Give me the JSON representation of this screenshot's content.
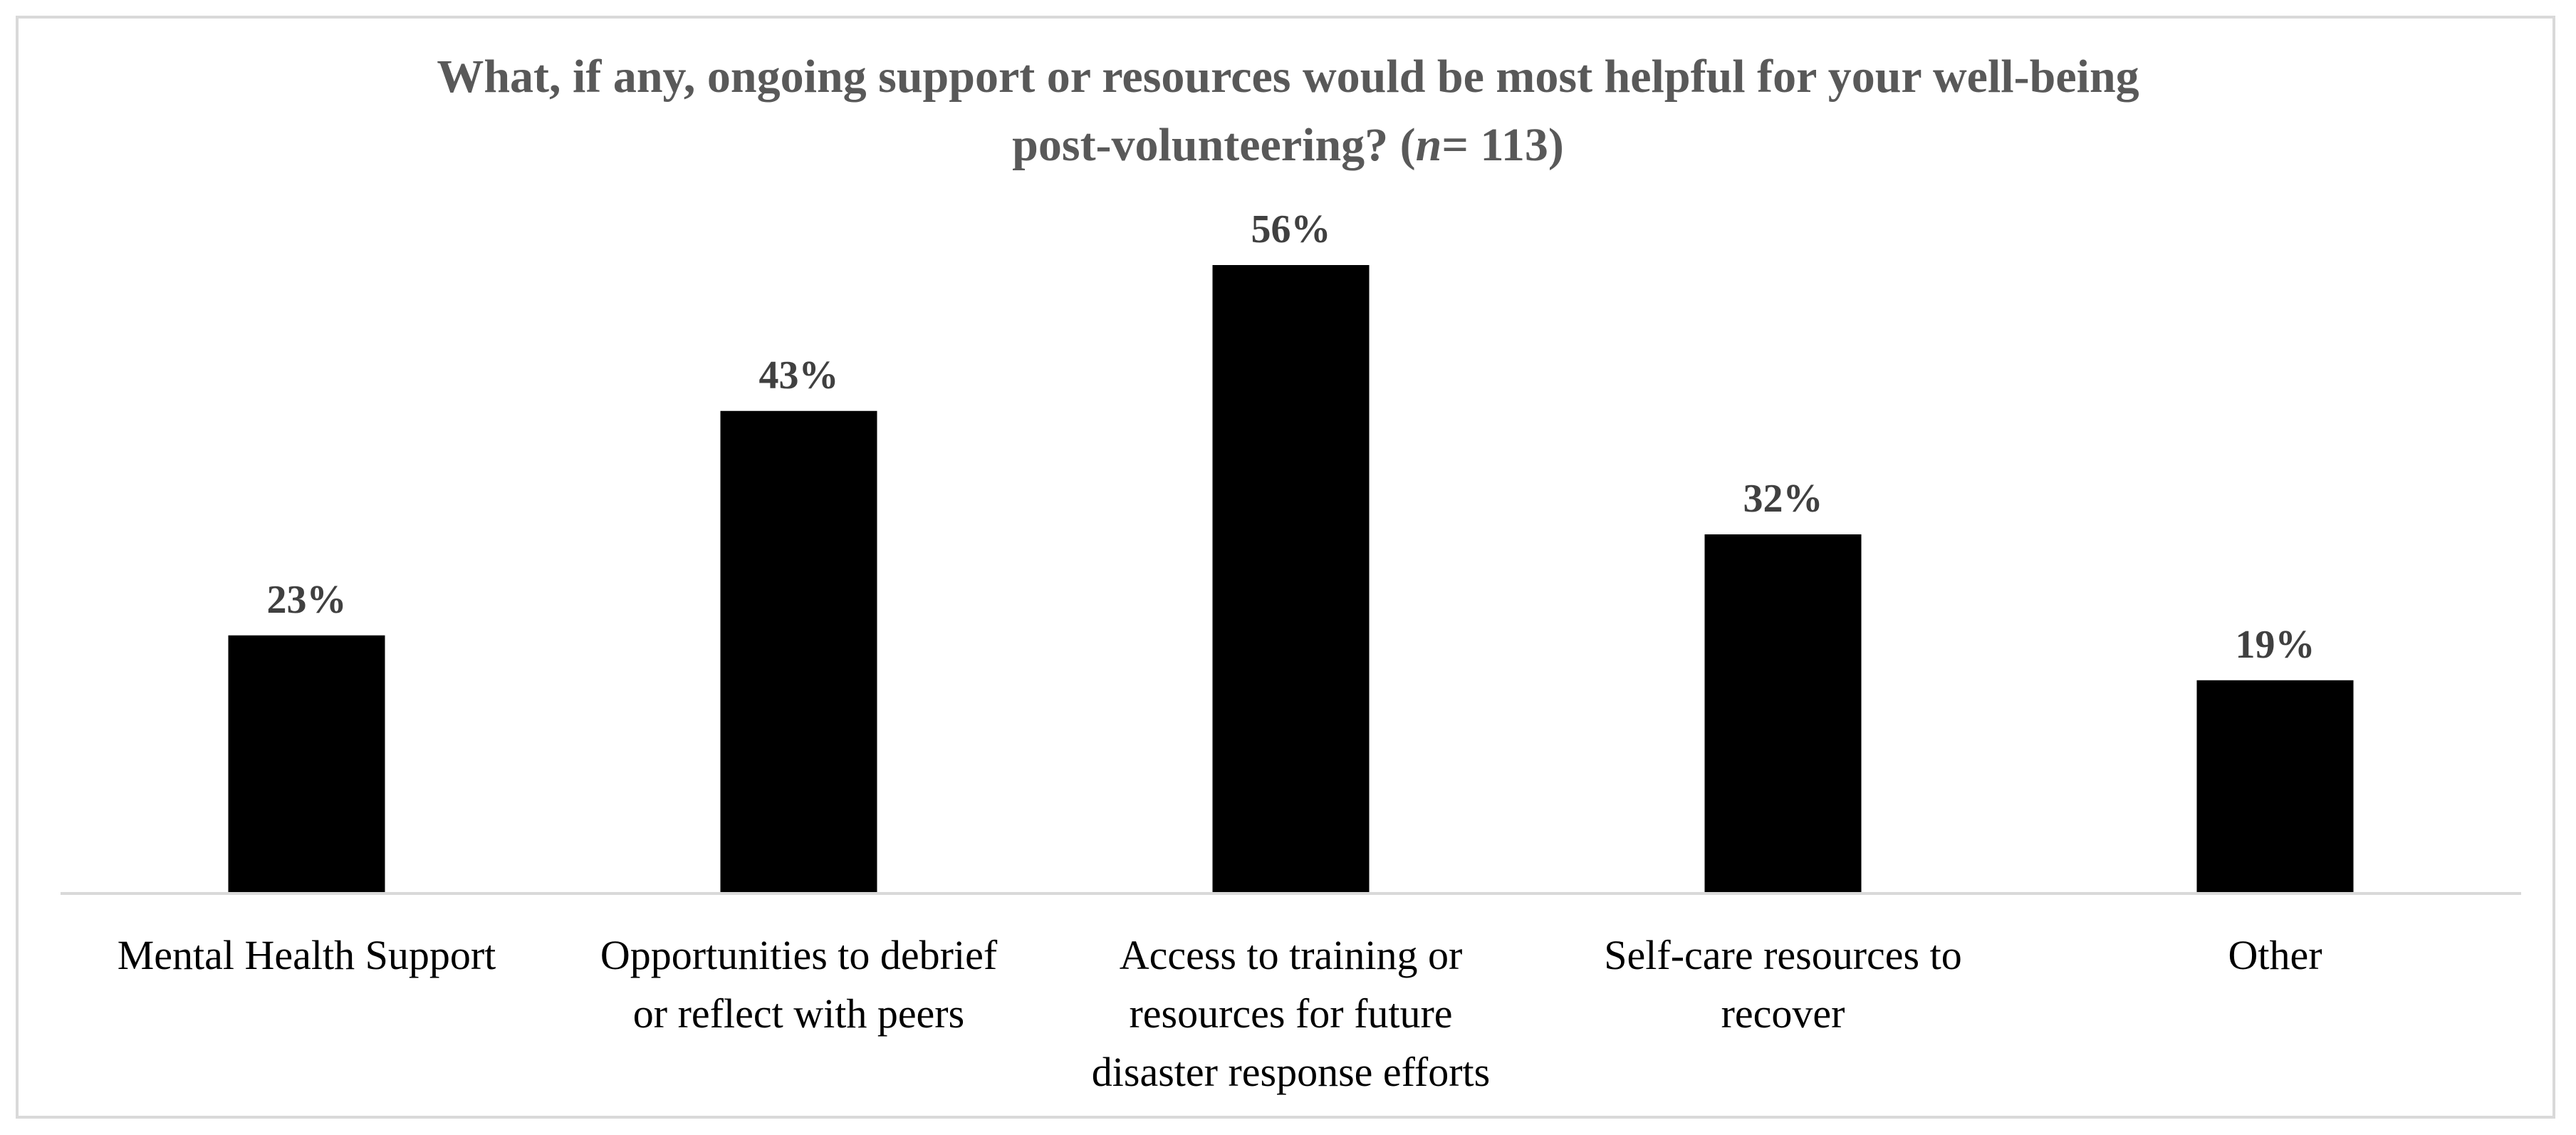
{
  "chart_data": {
    "type": "bar",
    "title_line1": "What, if any, ongoing support or resources would be most helpful for your well-being",
    "title_line2_pre": "post-volunteering? (",
    "title_n": "n",
    "title_line2_post": "= 113)",
    "categories": [
      "Mental Health Support",
      "Opportunities to debrief or reflect with peers",
      "Access to training or resources for future disaster response efforts",
      "Self-care resources to recover",
      "Other"
    ],
    "category_lines": [
      [
        "Mental Health Support"
      ],
      [
        "Opportunities to debrief",
        "or reflect with peers"
      ],
      [
        "Access to training or",
        "resources for future",
        "disaster response efforts"
      ],
      [
        "Self-care resources to",
        "recover"
      ],
      [
        "Other"
      ]
    ],
    "values": [
      23,
      43,
      56,
      32,
      19
    ],
    "data_labels": [
      "23%",
      "43%",
      "56%",
      "32%",
      "19%"
    ],
    "value_unit": "%",
    "ylim": [
      0,
      60
    ],
    "grid": false,
    "legend": "none",
    "bar_color": "#000000",
    "axis_color": "#d9d9d9",
    "title_color": "#595959",
    "data_label_color": "#404040"
  }
}
